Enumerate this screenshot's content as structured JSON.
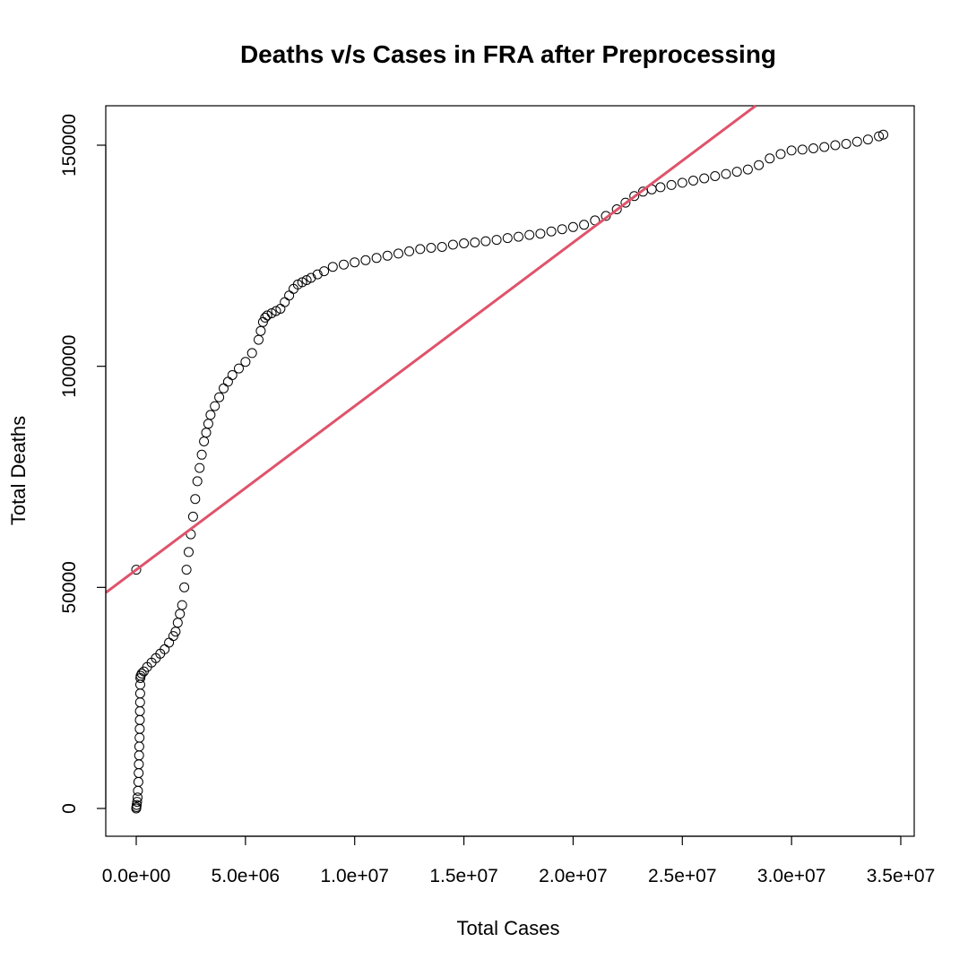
{
  "chart_data": {
    "type": "scatter",
    "title": "Deaths v/s Cases in FRA after Preprocessing",
    "xlabel": "Total Cases",
    "ylabel": "Total Deaths",
    "xlim": [
      -1400000,
      35500000
    ],
    "ylim": [
      -6500000,
      159000
    ],
    "ylim_note": "",
    "x_ticks": [
      0,
      5000000,
      10000000,
      15000000,
      20000000,
      25000000,
      30000000,
      35000000
    ],
    "x_tick_labels": [
      "0.0e+00",
      "5.0e+06",
      "1.0e+07",
      "1.5e+07",
      "2.0e+07",
      "2.5e+07",
      "3.0e+07",
      "3.5e+07"
    ],
    "y_ticks": [
      0,
      50000,
      100000,
      150000
    ],
    "y_tick_labels": [
      "0",
      "50000",
      "100000",
      "150000"
    ],
    "grid": false,
    "series": [
      {
        "color": "#000000",
        "marker": "open-circle",
        "points": [
          [
            0,
            0
          ],
          [
            10000,
            300
          ],
          [
            20000,
            800
          ],
          [
            40000,
            1500
          ],
          [
            60000,
            2500
          ],
          [
            80000,
            4000
          ],
          [
            100000,
            6000
          ],
          [
            110000,
            8000
          ],
          [
            120000,
            10000
          ],
          [
            130000,
            12000
          ],
          [
            140000,
            14000
          ],
          [
            150000,
            16000
          ],
          [
            160000,
            18000
          ],
          [
            165000,
            20000
          ],
          [
            170000,
            22000
          ],
          [
            175000,
            24000
          ],
          [
            180000,
            26000
          ],
          [
            185000,
            28000
          ],
          [
            190000,
            29500
          ],
          [
            200000,
            30000
          ],
          [
            250000,
            30500
          ],
          [
            350000,
            31000
          ],
          [
            500000,
            32000
          ],
          [
            700000,
            33000
          ],
          [
            900000,
            34000
          ],
          [
            1100000,
            35000
          ],
          [
            1300000,
            36000
          ],
          [
            1500000,
            37500
          ],
          [
            1700000,
            39000
          ],
          [
            1800000,
            40000
          ],
          [
            1900000,
            42000
          ],
          [
            2000000,
            44000
          ],
          [
            2100000,
            46000
          ],
          [
            2200000,
            50000
          ],
          [
            2300000,
            54000
          ],
          [
            2400000,
            58000
          ],
          [
            2500000,
            62000
          ],
          [
            2600000,
            66000
          ],
          [
            2700000,
            70000
          ],
          [
            2800000,
            74000
          ],
          [
            2900000,
            77000
          ],
          [
            3000000,
            80000
          ],
          [
            3100000,
            83000
          ],
          [
            3200000,
            85000
          ],
          [
            3300000,
            87000
          ],
          [
            3400000,
            89000
          ],
          [
            3600000,
            91000
          ],
          [
            3800000,
            93000
          ],
          [
            4000000,
            95000
          ],
          [
            4200000,
            96500
          ],
          [
            4400000,
            98000
          ],
          [
            4700000,
            99500
          ],
          [
            5000000,
            101000
          ],
          [
            5300000,
            103000
          ],
          [
            5600000,
            106000
          ],
          [
            5700000,
            108000
          ],
          [
            5800000,
            110000
          ],
          [
            5900000,
            111000
          ],
          [
            6000000,
            111500
          ],
          [
            6200000,
            112000
          ],
          [
            6400000,
            112500
          ],
          [
            6600000,
            113000
          ],
          [
            6800000,
            114500
          ],
          [
            7000000,
            116000
          ],
          [
            7200000,
            117500
          ],
          [
            7400000,
            118500
          ],
          [
            7600000,
            119000
          ],
          [
            7800000,
            119500
          ],
          [
            8000000,
            120000
          ],
          [
            8300000,
            120800
          ],
          [
            8600000,
            121500
          ],
          [
            9000000,
            122500
          ],
          [
            9500000,
            123000
          ],
          [
            10000000,
            123500
          ],
          [
            10500000,
            124000
          ],
          [
            11000000,
            124500
          ],
          [
            11500000,
            125000
          ],
          [
            12000000,
            125500
          ],
          [
            12500000,
            126000
          ],
          [
            13000000,
            126500
          ],
          [
            13500000,
            126800
          ],
          [
            14000000,
            127000
          ],
          [
            14500000,
            127500
          ],
          [
            15000000,
            127800
          ],
          [
            15500000,
            128000
          ],
          [
            16000000,
            128300
          ],
          [
            16500000,
            128600
          ],
          [
            17000000,
            129000
          ],
          [
            17500000,
            129300
          ],
          [
            18000000,
            129700
          ],
          [
            18500000,
            130000
          ],
          [
            19000000,
            130500
          ],
          [
            19500000,
            131000
          ],
          [
            20000000,
            131500
          ],
          [
            20500000,
            132000
          ],
          [
            21000000,
            133000
          ],
          [
            21500000,
            134000
          ],
          [
            22000000,
            135500
          ],
          [
            22400000,
            137000
          ],
          [
            22800000,
            138500
          ],
          [
            23200000,
            139500
          ],
          [
            23600000,
            140000
          ],
          [
            24000000,
            140500
          ],
          [
            24500000,
            141000
          ],
          [
            25000000,
            141500
          ],
          [
            25500000,
            142000
          ],
          [
            26000000,
            142500
          ],
          [
            26500000,
            143000
          ],
          [
            27000000,
            143500
          ],
          [
            27500000,
            144000
          ],
          [
            28000000,
            144500
          ],
          [
            28500000,
            145500
          ],
          [
            29000000,
            147000
          ],
          [
            29500000,
            148000
          ],
          [
            30000000,
            148800
          ],
          [
            30500000,
            149000
          ],
          [
            31000000,
            149300
          ],
          [
            31500000,
            149600
          ],
          [
            32000000,
            150000
          ],
          [
            32500000,
            150300
          ],
          [
            33000000,
            150800
          ],
          [
            33500000,
            151300
          ],
          [
            34000000,
            152000
          ],
          [
            34200000,
            152400
          ]
        ]
      }
    ],
    "outlier_points": [
      [
        0,
        54000
      ]
    ],
    "regression_line": {
      "color": "#df536b",
      "intercept": 54000,
      "slope": 0.0037
    }
  }
}
